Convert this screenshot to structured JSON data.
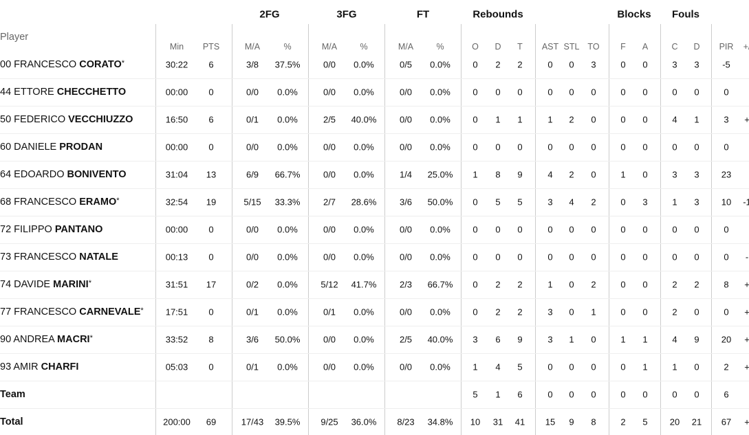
{
  "groups": [
    "2FG",
    "3FG",
    "FT",
    "Rebounds",
    "Blocks",
    "Fouls"
  ],
  "player_header": "Player",
  "columns": [
    "Min",
    "PTS",
    "M/A",
    "%",
    "M/A",
    "%",
    "M/A",
    "%",
    "O",
    "D",
    "T",
    "AST",
    "STL",
    "TO",
    "F",
    "A",
    "C",
    "D",
    "PIR",
    "+/"
  ],
  "players": [
    {
      "number": "00",
      "first": "FRANCESCO",
      "last": "CORATO",
      "star": "*",
      "stats": [
        "30:22",
        "6",
        "3/8",
        "37.5%",
        "0/0",
        "0.0%",
        "0/5",
        "0.0%",
        "0",
        "2",
        "2",
        "0",
        "0",
        "3",
        "0",
        "0",
        "3",
        "3",
        "-5",
        null
      ]
    },
    {
      "number": "44",
      "first": "ETTORE",
      "last": "CHECCHETTO",
      "stats": [
        "00:00",
        "0",
        "0/0",
        "0.0%",
        "0/0",
        "0.0%",
        "0/0",
        "0.0%",
        "0",
        "0",
        "0",
        "0",
        "0",
        "0",
        "0",
        "0",
        "0",
        "0",
        "0",
        null
      ]
    },
    {
      "number": "50",
      "first": "FEDERICO",
      "last": "VECCHIUZZO",
      "stats": [
        "16:50",
        "6",
        "0/1",
        "0.0%",
        "2/5",
        "40.0%",
        "0/0",
        "0.0%",
        "0",
        "1",
        "1",
        "1",
        "2",
        "0",
        "0",
        "0",
        "4",
        "1",
        "3",
        "+"
      ]
    },
    {
      "number": "60",
      "first": "DANIELE",
      "last": "PRODAN",
      "stats": [
        "00:00",
        "0",
        "0/0",
        "0.0%",
        "0/0",
        "0.0%",
        "0/0",
        "0.0%",
        "0",
        "0",
        "0",
        "0",
        "0",
        "0",
        "0",
        "0",
        "0",
        "0",
        "0",
        null
      ]
    },
    {
      "number": "64",
      "first": "EDOARDO",
      "last": "BONIVENTO",
      "stats": [
        "31:04",
        "13",
        "6/9",
        "66.7%",
        "0/0",
        "0.0%",
        "1/4",
        "25.0%",
        "1",
        "8",
        "9",
        "4",
        "2",
        "0",
        "1",
        "0",
        "3",
        "3",
        "23",
        null
      ]
    },
    {
      "number": "68",
      "first": "FRANCESCO",
      "last": "ERAMO",
      "star": "*",
      "stats": [
        "32:54",
        "19",
        "5/15",
        "33.3%",
        "2/7",
        "28.6%",
        "3/6",
        "50.0%",
        "0",
        "5",
        "5",
        "3",
        "4",
        "2",
        "0",
        "3",
        "1",
        "3",
        "10",
        "-1"
      ]
    },
    {
      "number": "72",
      "first": "FILIPPO",
      "last": "PANTANO",
      "stats": [
        "00:00",
        "0",
        "0/0",
        "0.0%",
        "0/0",
        "0.0%",
        "0/0",
        "0.0%",
        "0",
        "0",
        "0",
        "0",
        "0",
        "0",
        "0",
        "0",
        "0",
        "0",
        "0",
        null
      ]
    },
    {
      "number": "73",
      "first": "FRANCESCO",
      "last": "NATALE",
      "stats": [
        "00:13",
        "0",
        "0/0",
        "0.0%",
        "0/0",
        "0.0%",
        "0/0",
        "0.0%",
        "0",
        "0",
        "0",
        "0",
        "0",
        "0",
        "0",
        "0",
        "0",
        "0",
        "0",
        "-"
      ]
    },
    {
      "number": "74",
      "first": "DAVIDE",
      "last": "MARINI",
      "star": "*",
      "stats": [
        "31:51",
        "17",
        "0/2",
        "0.0%",
        "5/12",
        "41.7%",
        "2/3",
        "66.7%",
        "0",
        "2",
        "2",
        "1",
        "0",
        "2",
        "0",
        "0",
        "2",
        "2",
        "8",
        "+"
      ]
    },
    {
      "number": "77",
      "first": "FRANCESCO",
      "last": "CARNEVALE",
      "star": "*",
      "stats": [
        "17:51",
        "0",
        "0/1",
        "0.0%",
        "0/1",
        "0.0%",
        "0/0",
        "0.0%",
        "0",
        "2",
        "2",
        "3",
        "0",
        "1",
        "0",
        "0",
        "2",
        "0",
        "0",
        "+"
      ]
    },
    {
      "number": "90",
      "first": "ANDREA",
      "last": "MACRI",
      "star": "*",
      "stats": [
        "33:52",
        "8",
        "3/6",
        "50.0%",
        "0/0",
        "0.0%",
        "2/5",
        "40.0%",
        "3",
        "6",
        "9",
        "3",
        "1",
        "0",
        "1",
        "1",
        "4",
        "9",
        "20",
        "+"
      ]
    },
    {
      "number": "93",
      "first": "AMIR",
      "last": "CHARFI",
      "stats": [
        "05:03",
        "0",
        "0/1",
        "0.0%",
        "0/0",
        "0.0%",
        "0/0",
        "0.0%",
        "1",
        "4",
        "5",
        "0",
        "0",
        "0",
        "0",
        "1",
        "1",
        "0",
        "2",
        "+"
      ]
    }
  ],
  "team": {
    "label": "Team",
    "stats": [
      null,
      null,
      null,
      null,
      null,
      null,
      null,
      null,
      "5",
      "1",
      "6",
      "0",
      "0",
      "0",
      "0",
      "0",
      "0",
      "0",
      "6",
      null
    ]
  },
  "total": {
    "label": "Total",
    "stats": [
      "200:00",
      "69",
      "17/43",
      "39.5%",
      "9/25",
      "36.0%",
      "8/23",
      "34.8%",
      "10",
      "31",
      "41",
      "15",
      "9",
      "8",
      "2",
      "5",
      "20",
      "21",
      "67",
      "+"
    ]
  }
}
